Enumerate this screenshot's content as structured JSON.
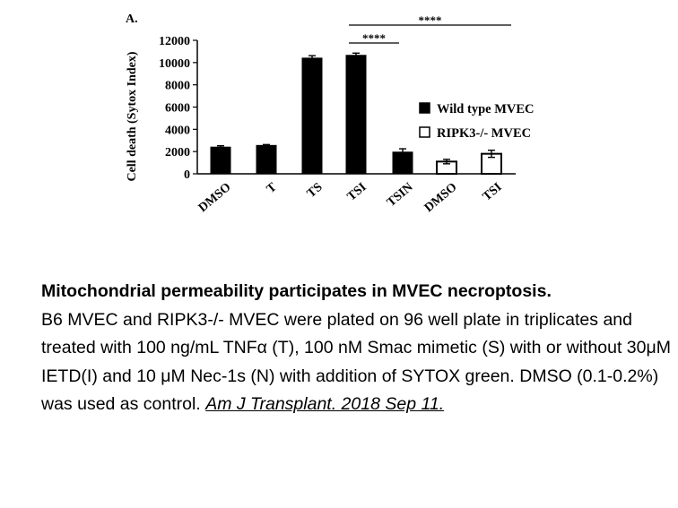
{
  "chart_data": {
    "type": "bar",
    "panel_label": "A.",
    "ylabel": "Cell death (Sytox Index)",
    "ylim": [
      0,
      12000
    ],
    "yticks": [
      0,
      2000,
      4000,
      6000,
      8000,
      10000,
      12000
    ],
    "categories": [
      "DMSO",
      "T",
      "TS",
      "TSI",
      "TSIN",
      "DMSO",
      "TSI"
    ],
    "values": [
      2400,
      2550,
      10400,
      10650,
      1950,
      1100,
      1800
    ],
    "errors": [
      120,
      80,
      220,
      200,
      300,
      200,
      320
    ],
    "groups": [
      "wt",
      "wt",
      "wt",
      "wt",
      "wt",
      "ko",
      "ko"
    ],
    "legend": [
      {
        "name": "Wild type MVEC",
        "fill": "#000000"
      },
      {
        "name": "RIPK3-/- MVEC",
        "fill": "#ffffff"
      }
    ],
    "legend_placement": "right",
    "significance": [
      {
        "from": 3,
        "to": 4,
        "label": "****"
      },
      {
        "from": 3,
        "to": 6,
        "label": "****"
      }
    ],
    "grid": false
  },
  "caption": {
    "title": "Mitochondrial permeability participates in MVEC necroptosis.",
    "body": "B6 MVEC and RIPK3-/- MVEC were plated on 96 well plate in triplicates and treated with 100 ng/mL TNFα (T), 100 nM Smac mimetic (S) with or without 30μM IETD(I) and 10 μM Nec-1s (N) with addition of SYTOX green. DMSO (0.1-0.2%) was used as control.",
    "reference": "Am J Transplant. 2018 Sep 11."
  }
}
